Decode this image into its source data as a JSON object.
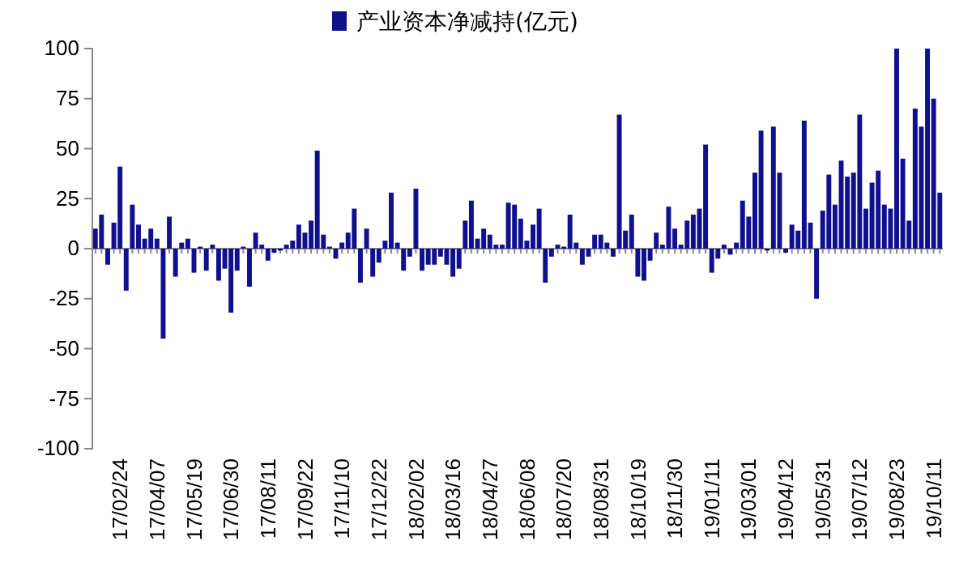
{
  "chart_data": {
    "type": "bar",
    "categories": [
      null,
      null,
      null,
      null,
      "17/02/24",
      null,
      null,
      null,
      null,
      null,
      "17/04/07",
      null,
      null,
      null,
      null,
      null,
      "17/05/19",
      null,
      null,
      null,
      null,
      null,
      "17/06/30",
      null,
      null,
      null,
      null,
      null,
      "17/08/11",
      null,
      null,
      null,
      null,
      null,
      "17/09/22",
      null,
      null,
      null,
      null,
      null,
      "17/11/10",
      null,
      null,
      null,
      null,
      null,
      "17/12/22",
      null,
      null,
      null,
      null,
      null,
      "18/02/02",
      null,
      null,
      null,
      null,
      null,
      "18/03/16",
      null,
      null,
      null,
      null,
      null,
      "18/04/27",
      null,
      null,
      null,
      null,
      null,
      "18/06/08",
      null,
      null,
      null,
      null,
      null,
      "18/07/20",
      null,
      null,
      null,
      null,
      null,
      "18/08/31",
      null,
      null,
      null,
      null,
      null,
      "18/10/19",
      null,
      null,
      null,
      null,
      null,
      "18/11/30",
      null,
      null,
      null,
      null,
      null,
      "19/01/11",
      null,
      null,
      null,
      null,
      null,
      "19/03/01",
      null,
      null,
      null,
      null,
      null,
      "19/04/12",
      null,
      null,
      null,
      null,
      null,
      "19/05/31",
      null,
      null,
      null,
      null,
      null,
      "19/07/12",
      null,
      null,
      null,
      null,
      null,
      "19/08/23",
      null,
      null,
      null,
      null,
      null,
      "19/10/11",
      null
    ],
    "series": [
      {
        "name": "产业资本净减持(亿元)",
        "color": "#10108f",
        "values": [
          10,
          17,
          -8,
          13,
          41,
          -21,
          22,
          12,
          5,
          10,
          5,
          -45,
          16,
          -14,
          3,
          5,
          -12,
          1,
          -11,
          2,
          -16,
          -10,
          -32,
          -11,
          1,
          -19,
          8,
          2,
          -6,
          -2,
          -1,
          2,
          4,
          12,
          8,
          14,
          49,
          7,
          1,
          -5,
          3,
          8,
          20,
          -17,
          10,
          -14,
          -7,
          4,
          28,
          3,
          -11,
          -4,
          30,
          -11,
          -8,
          -8,
          -4,
          -8,
          -14,
          -10,
          14,
          24,
          5,
          10,
          7,
          2,
          2,
          23,
          22,
          15,
          4,
          12,
          20,
          -17,
          -4,
          2,
          1,
          17,
          3,
          -8,
          -4,
          7,
          7,
          3,
          -4,
          67,
          9,
          17,
          -14,
          -16,
          -6,
          8,
          2,
          21,
          10,
          2,
          14,
          17,
          20,
          52,
          -12,
          -5,
          2,
          -3,
          3,
          24,
          16,
          38,
          59,
          -1,
          61,
          38,
          -2,
          12,
          9,
          64,
          13,
          -25,
          19,
          37,
          22,
          44,
          36,
          38,
          67,
          20,
          33,
          39,
          22,
          20,
          100,
          45,
          14,
          70,
          61,
          100,
          75,
          28
        ]
      }
    ],
    "ylim": [
      -100,
      100
    ],
    "yticks": [
      -100,
      -75,
      -50,
      -25,
      0,
      25,
      50,
      75,
      100
    ],
    "legend": "top"
  }
}
